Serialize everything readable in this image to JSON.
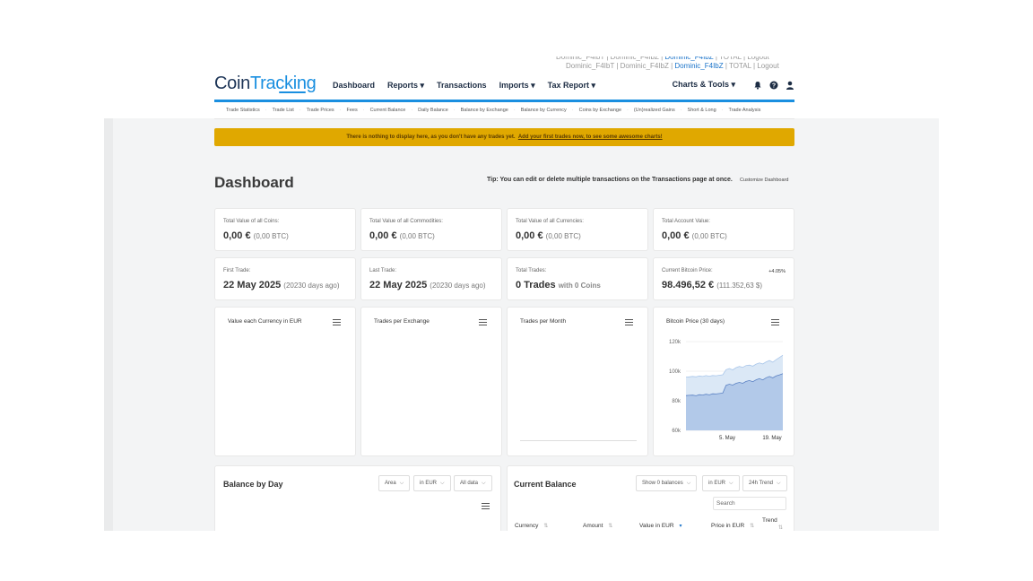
{
  "ghost_links_row1": [
    "Dominic_F4IbT",
    "Dominic_F4IbZ",
    "Dominic_F4IbZ",
    "TOTAL",
    "Logout"
  ],
  "ghost_links_row2": [
    "Dominic_F4IbT",
    "Dominic_F4IbZ",
    "Dominic_F4IbZ",
    "TOTAL",
    "Logout"
  ],
  "logo": {
    "part1": "Coin",
    "part2": "Tracking"
  },
  "nav": {
    "items": [
      "Dashboard",
      "Reports ▾",
      "Transactions",
      "Imports ▾",
      "Tax Report ▾"
    ],
    "right": "Charts & Tools ▾"
  },
  "subnav": [
    "Trade Statistics",
    "Trade List",
    "Trade Prices",
    "Fees",
    "Current Balance",
    "Daily Balance",
    "Balance by Exchange",
    "Balance by Currency",
    "Coins by Exchange",
    "(Un)realized Gains",
    "Short & Long",
    "Trade Analysis"
  ],
  "alert": {
    "text": "There is nothing to display here, as you don't have any trades yet.",
    "link": "Add your first trades now, to see some awesome charts!"
  },
  "page_title": "Dashboard",
  "tip": "Tip: You can edit or delete multiple transactions on the Transactions page at once.",
  "customize": "Customize Dashboard",
  "stats_row1": [
    {
      "label": "Total Value of all Coins:",
      "value": "0,00 €",
      "sub": "(0,00 BTC)"
    },
    {
      "label": "Total Value of all Commodities:",
      "value": "0,00 €",
      "sub": "(0,00 BTC)"
    },
    {
      "label": "Total Value of all Currencies:",
      "value": "0,00 €",
      "sub": "(0,00 BTC)"
    },
    {
      "label": "Total Account Value:",
      "value": "0,00 €",
      "sub": "(0,00 BTC)"
    }
  ],
  "stats_row2": [
    {
      "label": "First Trade:",
      "value": "22 May 2025",
      "sub": "(20230 days ago)"
    },
    {
      "label": "Last Trade:",
      "value": "22 May 2025",
      "sub": "(20230 days ago)"
    },
    {
      "label": "Total Trades:",
      "value": "0 Trades",
      "sub": "with 0 Coins"
    },
    {
      "label": "Current Bitcoin Price:",
      "value": "98.496,52 €",
      "sub": "(111.352,63 $)",
      "pct": "+4.05%"
    }
  ],
  "chart_titles": [
    "Value each Currency in EUR",
    "Trades per Exchange",
    "Trades per Month",
    "Bitcoin Price (30 days)"
  ],
  "chart_data": {
    "type": "area",
    "title": "Bitcoin Price (30 days)",
    "y_ticks": [
      "120k",
      "100k",
      "80k",
      "60k"
    ],
    "x_ticks": [
      "5. May",
      "19. May"
    ],
    "ylim": [
      60000,
      120000
    ],
    "series": [
      {
        "name": "",
        "color": "#dbe8f6",
        "values": [
          96000,
          96200,
          96500,
          96200,
          96800,
          96400,
          97000,
          96600,
          97100,
          96900,
          97300,
          97600,
          101000,
          101800,
          100900,
          102400,
          103200,
          102600,
          103800,
          104100,
          103400,
          104800,
          105600,
          104900,
          106300,
          107200,
          106100,
          107800,
          109300,
          110800
        ]
      },
      {
        "name": "",
        "color": "#b2c9e9",
        "values": [
          83500,
          83700,
          83800,
          83400,
          84100,
          83900,
          84400,
          84000,
          84700,
          84600,
          84900,
          85200,
          90500,
          91200,
          90600,
          91800,
          92400,
          91800,
          93100,
          93700,
          92900,
          94200,
          95000,
          94100,
          95600,
          96400,
          95500,
          96800,
          97500,
          98300
        ]
      }
    ]
  },
  "balance_by_day": {
    "title": "Balance by Day",
    "dropdowns": [
      "Area",
      "in EUR",
      "All data"
    ]
  },
  "current_balance": {
    "title": "Current Balance",
    "dropdowns": [
      "Show 0 balances",
      "in EUR",
      "24h Trend"
    ],
    "search_placeholder": "Search",
    "columns": [
      "Currency",
      "Amount",
      "Value in EUR",
      "Price in EUR",
      "Trend"
    ]
  }
}
